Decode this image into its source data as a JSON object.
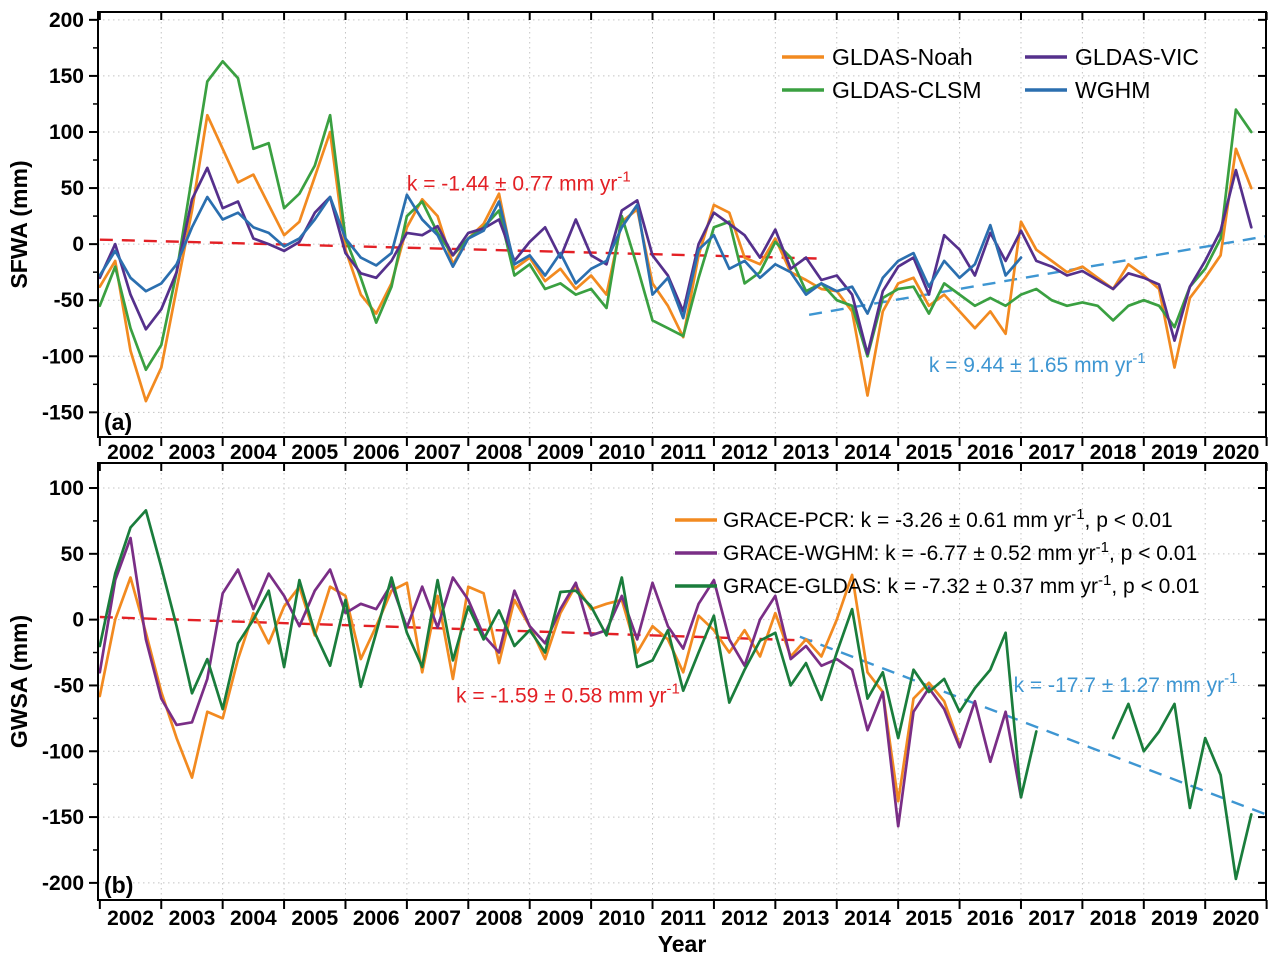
{
  "figure": {
    "xlabel": "Year",
    "panel_a_label": "(a)",
    "panel_b_label": "(b)"
  },
  "colors": {
    "noah": "#F28A20",
    "clsm": "#3AA041",
    "vic": "#55308C",
    "wghm_model": "#2B6FAF",
    "pcr": "#F28A20",
    "wghm_grace": "#7A2E86",
    "gldas_grace": "#1A7D3C",
    "trend_red": "#E32025",
    "trend_blue": "#3E96D2",
    "frame": "#000000",
    "grid": "#c4c4c4"
  },
  "chart_data": [
    {
      "type": "line",
      "panel": "a",
      "panel_label": "(a)",
      "ylabel": "SFWA (mm)",
      "xlabel": "",
      "ylim": [
        -172,
        207
      ],
      "xlim": [
        2001.97,
        2020.99
      ],
      "yticks_major": [
        -150,
        -100,
        -50,
        0,
        50,
        100,
        150,
        200
      ],
      "ytick_minor_step": 25,
      "xticks": [
        2002,
        2003,
        2004,
        2005,
        2006,
        2007,
        2008,
        2009,
        2010,
        2011,
        2012,
        2013,
        2014,
        2015,
        2016,
        2017,
        2018,
        2019,
        2020,
        2021
      ],
      "xtick_labels": [
        "2002",
        "2003",
        "2004",
        "2005",
        "2006",
        "2007",
        "2008",
        "2009",
        "2010",
        "2011",
        "2012",
        "2013",
        "2014",
        "2015",
        "2016",
        "2017",
        "2018",
        "2019",
        "2020"
      ],
      "grid": "dotted",
      "legend_position": "top-right-two-columns",
      "x0": 2002.0,
      "dx": 0.25,
      "series": [
        {
          "name": "GLDAS-Noah",
          "color_key": "noah",
          "values": [
            -38,
            -15,
            -95,
            -140,
            -110,
            -40,
            30,
            115,
            85,
            55,
            62,
            35,
            8,
            20,
            60,
            100,
            -5,
            -45,
            -62,
            -35,
            15,
            40,
            25,
            -18,
            5,
            18,
            45,
            -22,
            -12,
            -33,
            -22,
            -40,
            -28,
            -45,
            20,
            31,
            -35,
            -55,
            -83,
            -10,
            35,
            28,
            -12,
            -18,
            5,
            -25,
            -32,
            -40,
            -42,
            -60,
            -135,
            -60,
            -35,
            -30,
            -55,
            -45,
            -60,
            -75,
            -60,
            -80,
            20,
            -5,
            -15,
            -25,
            -20,
            -30,
            -40,
            -18,
            -28,
            -40,
            -110,
            -48,
            -30,
            -10,
            85,
            50
          ]
        },
        {
          "name": "GLDAS-CLSM",
          "color_key": "clsm",
          "values": [
            -55,
            -20,
            -75,
            -112,
            -90,
            -25,
            60,
            145,
            163,
            148,
            85,
            90,
            32,
            45,
            70,
            115,
            5,
            -30,
            -70,
            -38,
            25,
            38,
            10,
            -10,
            5,
            15,
            30,
            -28,
            -18,
            -40,
            -35,
            -45,
            -40,
            -57,
            25,
            -20,
            -68,
            -75,
            -82,
            -30,
            15,
            20,
            -35,
            -25,
            2,
            -12,
            -42,
            -35,
            -50,
            -55,
            -100,
            -48,
            -40,
            -38,
            -62,
            -35,
            -45,
            -55,
            -48,
            -55,
            -45,
            -40,
            -50,
            -55,
            -52,
            -55,
            -68,
            -55,
            -50,
            -55,
            -74,
            -38,
            -22,
            5,
            120,
            100
          ]
        },
        {
          "name": "GLDAS-VIC",
          "color_key": "vic",
          "values": [
            -30,
            0,
            -45,
            -76,
            -58,
            -25,
            40,
            68,
            32,
            38,
            5,
            0,
            -6,
            2,
            28,
            42,
            -8,
            -26,
            -30,
            -15,
            10,
            8,
            16,
            -10,
            10,
            14,
            22,
            -15,
            2,
            15,
            -12,
            22,
            -10,
            -18,
            30,
            39,
            -10,
            -28,
            -60,
            0,
            28,
            18,
            8,
            -12,
            13,
            -22,
            -12,
            -32,
            -28,
            -45,
            -98,
            -42,
            -20,
            -12,
            -45,
            8,
            -5,
            -28,
            10,
            -15,
            12,
            -15,
            -20,
            -28,
            -24,
            -32,
            -40,
            -26,
            -30,
            -36,
            -86,
            -38,
            -15,
            12,
            66,
            15
          ]
        },
        {
          "name": "WGHM",
          "color_key": "wghm_model",
          "values": [
            -28,
            -6,
            -30,
            -42,
            -35,
            -18,
            15,
            42,
            22,
            28,
            15,
            10,
            -2,
            5,
            22,
            42,
            5,
            -12,
            -19,
            -8,
            44,
            22,
            8,
            -20,
            5,
            12,
            38,
            -18,
            -10,
            -28,
            -8,
            -35,
            -22,
            -15,
            15,
            35,
            -45,
            -30,
            -66,
            -5,
            8,
            -22,
            -15,
            -30,
            -18,
            -25,
            -45,
            -35,
            -42,
            -38,
            -62,
            -30,
            -15,
            -8,
            -38,
            -15,
            -30,
            -18,
            17,
            -28,
            -12
          ]
        }
      ],
      "trends": [
        {
          "color_key": "trend_red",
          "x1": 2002.0,
          "v1": 4,
          "x2": 2013.8,
          "v2": -13,
          "annotation": {
            "text": "k = -1.44 ± 0.77 mm yr",
            "sup": "-1",
            "x": 2007.0,
            "v": 48
          }
        },
        {
          "color_key": "trend_blue",
          "x1": 2013.55,
          "v1": -63,
          "x2": 2020.99,
          "v2": 7,
          "annotation": {
            "text": "k = 9.44 ± 1.65 mm yr",
            "sup": "-1",
            "x": 2015.5,
            "v": -114
          }
        }
      ],
      "legend_columns": [
        [
          0,
          1
        ],
        [
          2,
          3
        ]
      ]
    },
    {
      "type": "line",
      "panel": "b",
      "panel_label": "(b)",
      "ylabel": "GWSA (mm)",
      "xlabel": "Year",
      "ylim": [
        -213,
        119
      ],
      "xlim": [
        2001.97,
        2020.99
      ],
      "yticks_major": [
        -200,
        -150,
        -100,
        -50,
        0,
        50,
        100
      ],
      "ytick_minor_step": 25,
      "xticks": [
        2002,
        2003,
        2004,
        2005,
        2006,
        2007,
        2008,
        2009,
        2010,
        2011,
        2012,
        2013,
        2014,
        2015,
        2016,
        2017,
        2018,
        2019,
        2020,
        2021
      ],
      "xtick_labels": [
        "2002",
        "2003",
        "2004",
        "2005",
        "2006",
        "2007",
        "2008",
        "2009",
        "2010",
        "2011",
        "2012",
        "2013",
        "2014",
        "2015",
        "2016",
        "2017",
        "2018",
        "2019",
        "2020"
      ],
      "grid": "dotted",
      "legend_position": "top-right-stats",
      "x0": 2002.0,
      "dx": 0.25,
      "series": [
        {
          "name": "GRACE-PCR",
          "color_key": "pcr",
          "legend_text": {
            "text": "GRACE-PCR: k = -3.26 ± 0.61 mm yr",
            "sup": "-1",
            "suffix": ", p < 0.01"
          },
          "values": [
            -58,
            0,
            32,
            -10,
            -55,
            -90,
            -120,
            -70,
            -75,
            -30,
            5,
            -18,
            10,
            25,
            -12,
            25,
            18,
            -30,
            -5,
            22,
            28,
            -40,
            18,
            -45,
            25,
            20,
            -33,
            15,
            -5,
            -30,
            5,
            26,
            8,
            12,
            15,
            -25,
            -5,
            -15,
            -40,
            3,
            -8,
            -25,
            -8,
            -28,
            5,
            -28,
            -15,
            -28,
            0,
            34,
            -40,
            -55,
            -138,
            -60,
            -48,
            -62,
            -95
          ]
        },
        {
          "name": "GRACE-WGHM",
          "color_key": "wghm_grace",
          "legend_text": {
            "text": "GRACE-WGHM: k = -6.77 ± 0.52 mm yr",
            "sup": "-1",
            "suffix": ", p < 0.01"
          },
          "values": [
            -40,
            30,
            62,
            -15,
            -60,
            -80,
            -78,
            -45,
            20,
            38,
            8,
            35,
            18,
            -5,
            22,
            38,
            5,
            12,
            8,
            27,
            -6,
            25,
            -6,
            32,
            15,
            -12,
            -25,
            22,
            -5,
            -18,
            8,
            28,
            -12,
            -8,
            18,
            -15,
            28,
            -5,
            -22,
            12,
            30,
            -15,
            -35,
            0,
            18,
            -30,
            -20,
            -35,
            -30,
            -38,
            -84,
            -55,
            -157,
            -70,
            -52,
            -68,
            -97,
            -62,
            -108,
            -70,
            -135
          ]
        },
        {
          "name": "GRACE-GLDAS",
          "color_key": "gldas_grace",
          "legend_text": {
            "text": "GRACE-GLDAS: k = -7.32 ± 0.37 mm yr",
            "sup": "-1",
            "suffix": ", p < 0.01"
          },
          "values": [
            -20,
            35,
            70,
            83,
            40,
            -5,
            -56,
            -30,
            -68,
            -18,
            0,
            22,
            -36,
            30,
            -10,
            -35,
            15,
            -51,
            -10,
            32,
            -10,
            -36,
            30,
            -31,
            10,
            -15,
            7,
            -20,
            -8,
            -25,
            21,
            22,
            10,
            -12,
            32,
            -36,
            -31,
            -8,
            -54,
            -25,
            3,
            -63,
            -38,
            -16,
            -10,
            -50,
            -33,
            -61,
            -25,
            8,
            -60,
            -40,
            -90,
            -38,
            -55,
            -45,
            -70,
            -52,
            -38,
            -10,
            -135,
            -85,
            null,
            null,
            null,
            null,
            -90,
            -64,
            -100,
            -85,
            -64,
            -143,
            -90,
            -118,
            -197,
            -148
          ]
        }
      ],
      "trends": [
        {
          "color_key": "trend_red",
          "x1": 2002.0,
          "v1": 2,
          "x2": 2013.6,
          "v2": -16,
          "annotation": {
            "text": "k = -1.59 ± 0.58 mm yr",
            "sup": "-1",
            "x": 2007.8,
            "v": -63
          }
        },
        {
          "color_key": "trend_blue",
          "x1": 2013.4,
          "v1": -13,
          "x2": 2020.99,
          "v2": -148,
          "annotation": {
            "text": "k = -17.7 ± 1.27 mm yr",
            "sup": "-1",
            "x": 2016.88,
            "v": -55
          }
        }
      ]
    }
  ]
}
